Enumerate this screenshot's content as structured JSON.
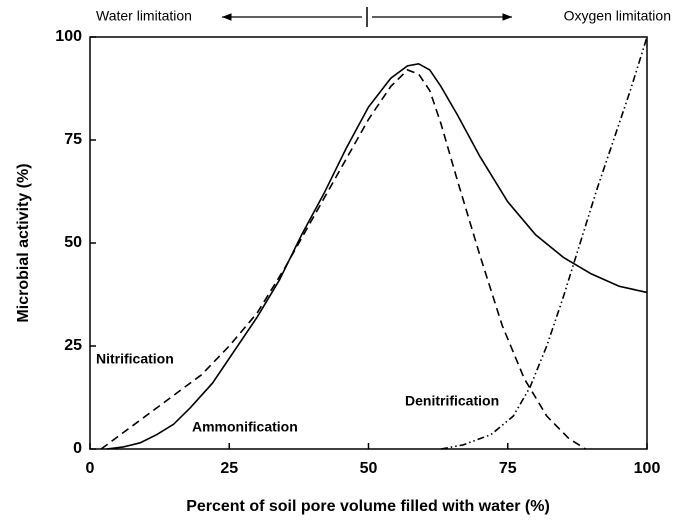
{
  "chart_data": {
    "type": "line",
    "annotations": {
      "left": "Water limitation",
      "right": "Oxygen limitation"
    },
    "xlabel": "Percent of soil pore volume filled with water (%)",
    "ylabel": "Microbial activity (%)",
    "xlim": [
      0,
      100
    ],
    "xticks": [
      0,
      25,
      50,
      75,
      100
    ],
    "ylim": [
      0,
      100
    ],
    "yticks": [
      0,
      25,
      50,
      75,
      100
    ],
    "grid": false,
    "series": [
      {
        "name": "Ammonification",
        "color": "#000000",
        "style": "solid",
        "x": [
          3,
          6,
          9,
          12,
          15,
          18,
          22,
          26,
          30,
          34,
          38,
          42,
          46,
          50,
          54,
          57,
          59,
          61,
          63,
          66,
          70,
          75,
          80,
          85,
          90,
          95,
          100
        ],
        "values": [
          0,
          0.5,
          1.5,
          3.5,
          6,
          10,
          16,
          24,
          32,
          41,
          52,
          62,
          73,
          83,
          90,
          93,
          93.5,
          92,
          88,
          81,
          71,
          60,
          52,
          46.5,
          42.5,
          39.5,
          38
        ]
      },
      {
        "name": "Nitrification",
        "color": "#000000",
        "style": "dashed",
        "x": [
          2,
          5,
          10,
          15,
          20,
          25,
          30,
          35,
          40,
          45,
          50,
          54,
          57,
          59,
          61,
          63,
          66,
          70,
          74,
          78,
          82,
          86,
          89
        ],
        "values": [
          0,
          3,
          8,
          13,
          18,
          25,
          33,
          44,
          56,
          68,
          80,
          88,
          92,
          91,
          87,
          79,
          65,
          47,
          30,
          17,
          8,
          2.5,
          0
        ]
      },
      {
        "name": "Denitrification",
        "color": "#000000",
        "style": "dashdotdot",
        "x": [
          63,
          67,
          72,
          76,
          79,
          82,
          85,
          88,
          91,
          94,
          97,
          100
        ],
        "values": [
          0,
          1,
          3.5,
          8,
          15,
          25,
          37,
          50,
          63,
          75,
          87,
          100
        ]
      }
    ]
  }
}
